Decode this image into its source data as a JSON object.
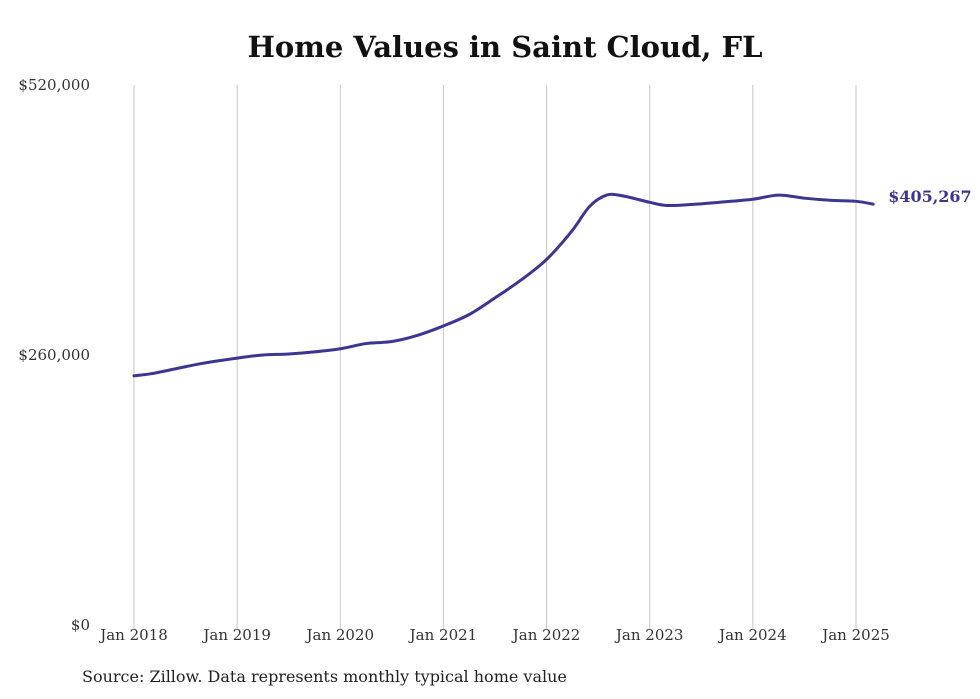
{
  "chart_data": {
    "type": "line",
    "title": "Home Values in Saint Cloud, FL",
    "source": "Source: Zillow. Data represents monthly typical home value",
    "ylim": [
      0,
      520000
    ],
    "y_ticks": [
      {
        "value": 0,
        "label": "$0"
      },
      {
        "value": 260000,
        "label": "$260,000"
      },
      {
        "value": 520000,
        "label": "$520,000"
      }
    ],
    "x_range": [
      "2018-01",
      "2025-03"
    ],
    "x_ticks": [
      {
        "date": "2018-01",
        "label": "Jan 2018"
      },
      {
        "date": "2019-01",
        "label": "Jan 2019"
      },
      {
        "date": "2020-01",
        "label": "Jan 2020"
      },
      {
        "date": "2021-01",
        "label": "Jan 2021"
      },
      {
        "date": "2022-01",
        "label": "Jan 2022"
      },
      {
        "date": "2023-01",
        "label": "Jan 2023"
      },
      {
        "date": "2024-01",
        "label": "Jan 2024"
      },
      {
        "date": "2025-01",
        "label": "Jan 2025"
      }
    ],
    "grid": {
      "vertical": true,
      "horizontal": false
    },
    "series": [
      {
        "color": "#3d3592",
        "end_label": "$405,267",
        "points": [
          {
            "x": "2018-01",
            "y": 240000
          },
          {
            "x": "2018-03",
            "y": 242000
          },
          {
            "x": "2018-06",
            "y": 247000
          },
          {
            "x": "2018-09",
            "y": 252000
          },
          {
            "x": "2019-01",
            "y": 257000
          },
          {
            "x": "2019-04",
            "y": 260000
          },
          {
            "x": "2019-07",
            "y": 261000
          },
          {
            "x": "2019-10",
            "y": 263000
          },
          {
            "x": "2020-01",
            "y": 266000
          },
          {
            "x": "2020-04",
            "y": 271000
          },
          {
            "x": "2020-07",
            "y": 273000
          },
          {
            "x": "2020-10",
            "y": 279000
          },
          {
            "x": "2021-01",
            "y": 288000
          },
          {
            "x": "2021-04",
            "y": 299000
          },
          {
            "x": "2021-07",
            "y": 315000
          },
          {
            "x": "2021-10",
            "y": 332000
          },
          {
            "x": "2022-01",
            "y": 352000
          },
          {
            "x": "2022-04",
            "y": 380000
          },
          {
            "x": "2022-06",
            "y": 403000
          },
          {
            "x": "2022-08",
            "y": 414000
          },
          {
            "x": "2022-10",
            "y": 413000
          },
          {
            "x": "2023-01",
            "y": 407000
          },
          {
            "x": "2023-03",
            "y": 404000
          },
          {
            "x": "2023-06",
            "y": 405000
          },
          {
            "x": "2023-09",
            "y": 407000
          },
          {
            "x": "2024-01",
            "y": 410000
          },
          {
            "x": "2024-04",
            "y": 414000
          },
          {
            "x": "2024-07",
            "y": 411000
          },
          {
            "x": "2024-10",
            "y": 409000
          },
          {
            "x": "2025-01",
            "y": 408000
          },
          {
            "x": "2025-03",
            "y": 405267
          }
        ]
      }
    ]
  }
}
